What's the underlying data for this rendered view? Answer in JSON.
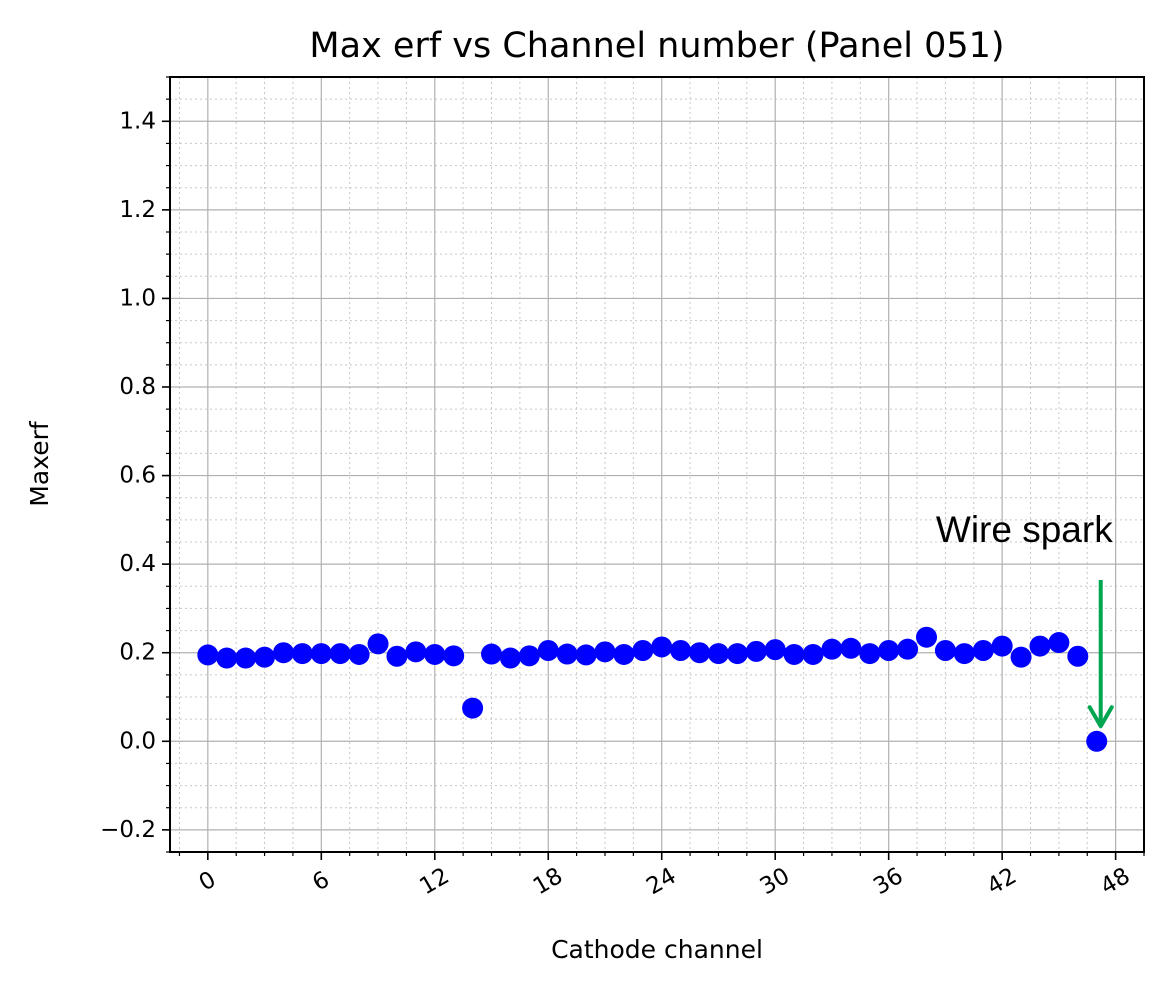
{
  "chart_data": {
    "type": "scatter",
    "title": "Max erf vs Channel number (Panel 051)",
    "xlabel": "Cathode channel",
    "ylabel": "Maxerf",
    "xlim": [
      -2,
      49.5
    ],
    "ylim": [
      -0.25,
      1.5
    ],
    "x_ticks": [
      0,
      6,
      12,
      18,
      24,
      30,
      36,
      42,
      48
    ],
    "x_tick_labels": [
      "0",
      "6",
      "12",
      "18",
      "24",
      "30",
      "36",
      "42",
      "48"
    ],
    "y_ticks": [
      -0.2,
      0.0,
      0.2,
      0.4,
      0.6,
      0.8,
      1.0,
      1.2,
      1.4
    ],
    "y_tick_labels": [
      "−0.2",
      "0.0",
      "0.2",
      "0.4",
      "0.6",
      "0.8",
      "1.0",
      "1.2",
      "1.4"
    ],
    "grid": true,
    "minor_grid": true,
    "marker_color": "#0000ff",
    "annotation_color": "#00a550",
    "series": [
      {
        "x": [
          0,
          1,
          2,
          3,
          4,
          5,
          6,
          7,
          8,
          9,
          10,
          11,
          12,
          13,
          14,
          15,
          16,
          17,
          18,
          19,
          20,
          21,
          22,
          23,
          24,
          25,
          26,
          27,
          28,
          29,
          30,
          31,
          32,
          33,
          34,
          35,
          36,
          37,
          38,
          39,
          40,
          41,
          42,
          43,
          44,
          45,
          46,
          47
        ],
        "y": [
          0.195,
          0.188,
          0.188,
          0.19,
          0.2,
          0.198,
          0.198,
          0.198,
          0.196,
          0.22,
          0.192,
          0.202,
          0.196,
          0.193,
          0.075,
          0.197,
          0.188,
          0.193,
          0.205,
          0.197,
          0.195,
          0.202,
          0.196,
          0.205,
          0.213,
          0.205,
          0.2,
          0.198,
          0.198,
          0.203,
          0.207,
          0.196,
          0.196,
          0.208,
          0.21,
          0.198,
          0.205,
          0.208,
          0.235,
          0.205,
          0.198,
          0.205,
          0.215,
          0.19,
          0.215,
          0.223,
          0.192,
          0.0
        ]
      }
    ],
    "annotations": [
      {
        "text": "Wire spark",
        "target": [
          47,
          0.0
        ]
      }
    ]
  }
}
